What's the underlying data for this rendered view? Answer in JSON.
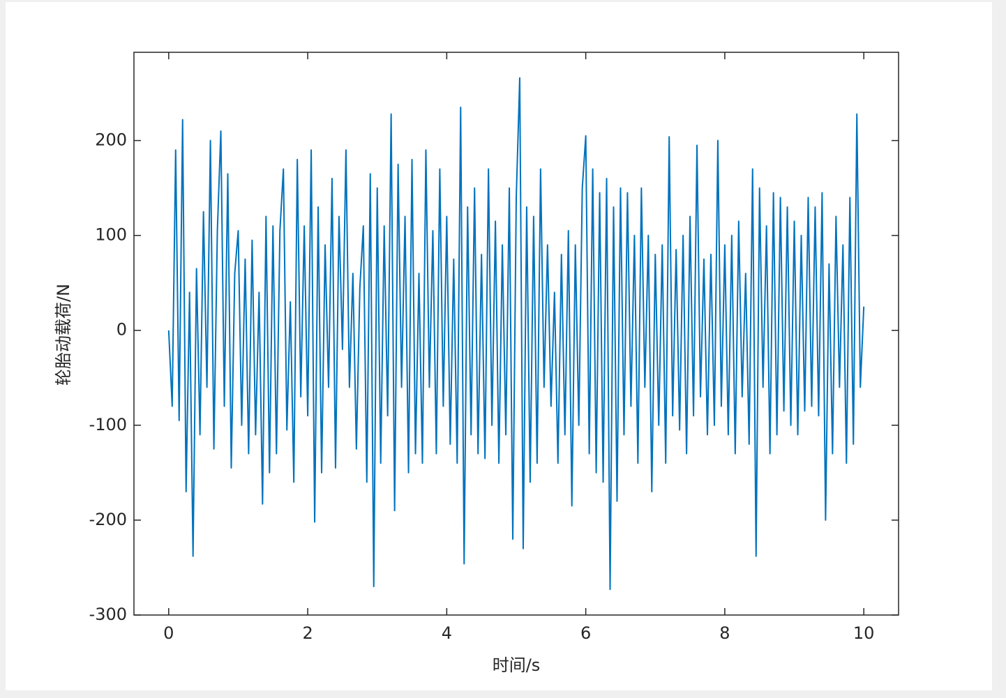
{
  "chart_data": {
    "type": "line",
    "x_label": "时间/s",
    "y_label": "轮胎动载荷/N",
    "xlim": [
      -0.5,
      10.5
    ],
    "ylim": [
      -300,
      293
    ],
    "xticks": [
      0,
      2,
      4,
      6,
      8,
      10
    ],
    "yticks": [
      -300,
      -200,
      -100,
      0,
      100,
      200
    ],
    "series": [
      {
        "color": "#0072bd",
        "x": [
          0,
          0.05,
          0.1,
          0.15,
          0.2,
          0.25,
          0.3,
          0.35,
          0.4,
          0.45,
          0.5,
          0.55,
          0.6,
          0.65,
          0.7,
          0.75,
          0.8,
          0.85,
          0.9,
          0.95,
          1,
          1.05,
          1.1,
          1.15,
          1.2,
          1.25,
          1.3,
          1.35,
          1.4,
          1.45,
          1.5,
          1.55,
          1.6,
          1.65,
          1.7,
          1.75,
          1.8,
          1.85,
          1.9,
          1.95,
          2,
          2.05,
          2.1,
          2.15,
          2.2,
          2.25,
          2.3,
          2.35,
          2.4,
          2.45,
          2.5,
          2.55,
          2.6,
          2.65,
          2.7,
          2.75,
          2.8,
          2.85,
          2.9,
          2.95,
          3,
          3.05,
          3.1,
          3.15,
          3.2,
          3.25,
          3.3,
          3.35,
          3.4,
          3.45,
          3.5,
          3.55,
          3.6,
          3.65,
          3.7,
          3.75,
          3.8,
          3.85,
          3.9,
          3.95,
          4,
          4.05,
          4.1,
          4.15,
          4.2,
          4.25,
          4.3,
          4.35,
          4.4,
          4.45,
          4.5,
          4.55,
          4.6,
          4.65,
          4.7,
          4.75,
          4.8,
          4.85,
          4.9,
          4.95,
          5,
          5.05,
          5.1,
          5.15,
          5.2,
          5.25,
          5.3,
          5.35,
          5.4,
          5.45,
          5.5,
          5.55,
          5.6,
          5.65,
          5.7,
          5.75,
          5.8,
          5.85,
          5.9,
          5.95,
          6,
          6.05,
          6.1,
          6.15,
          6.2,
          6.25,
          6.3,
          6.35,
          6.4,
          6.45,
          6.5,
          6.55,
          6.6,
          6.65,
          6.7,
          6.75,
          6.8,
          6.85,
          6.9,
          6.95,
          7,
          7.05,
          7.1,
          7.15,
          7.2,
          7.25,
          7.3,
          7.35,
          7.4,
          7.45,
          7.5,
          7.55,
          7.6,
          7.65,
          7.7,
          7.75,
          7.8,
          7.85,
          7.9,
          7.95,
          8,
          8.05,
          8.1,
          8.15,
          8.2,
          8.25,
          8.3,
          8.35,
          8.4,
          8.45,
          8.5,
          8.55,
          8.6,
          8.65,
          8.7,
          8.75,
          8.8,
          8.85,
          8.9,
          8.95,
          9,
          9.05,
          9.1,
          9.15,
          9.2,
          9.25,
          9.3,
          9.35,
          9.4,
          9.45,
          9.5,
          9.55,
          9.6,
          9.65,
          9.7,
          9.75,
          9.8,
          9.85,
          9.9,
          9.95,
          10
        ],
        "values": [
          0,
          -80,
          190,
          -95,
          222,
          -170,
          40,
          -238,
          65,
          -110,
          125,
          -60,
          200,
          -125,
          105,
          210,
          -80,
          165,
          -145,
          60,
          105,
          -100,
          75,
          -130,
          95,
          -110,
          40,
          -183,
          120,
          -150,
          110,
          -130,
          105,
          170,
          -105,
          30,
          -160,
          180,
          -70,
          110,
          -90,
          190,
          -202,
          130,
          -150,
          90,
          -60,
          160,
          -145,
          120,
          -20,
          190,
          -60,
          60,
          -125,
          45,
          110,
          -160,
          165,
          -270,
          150,
          -140,
          110,
          -90,
          228,
          -190,
          175,
          -60,
          120,
          -150,
          180,
          -130,
          60,
          -140,
          190,
          -60,
          105,
          -130,
          170,
          -80,
          120,
          -120,
          75,
          -140,
          235,
          -246,
          130,
          -110,
          150,
          -130,
          80,
          -135,
          170,
          -100,
          115,
          -140,
          90,
          -110,
          150,
          -220,
          140,
          266,
          -230,
          130,
          -160,
          120,
          -140,
          170,
          -60,
          90,
          -80,
          40,
          -140,
          80,
          -110,
          105,
          -185,
          90,
          -100,
          150,
          205,
          -130,
          170,
          -150,
          145,
          -160,
          160,
          -273,
          130,
          -180,
          150,
          -110,
          145,
          -80,
          100,
          -140,
          150,
          -60,
          100,
          -170,
          80,
          -100,
          90,
          -140,
          204,
          -90,
          85,
          -105,
          100,
          -130,
          120,
          -90,
          195,
          -70,
          75,
          -110,
          80,
          -100,
          200,
          -80,
          90,
          -110,
          100,
          -130,
          115,
          -70,
          60,
          -120,
          170,
          -238,
          150,
          -60,
          110,
          -130,
          145,
          -110,
          140,
          -85,
          130,
          -100,
          115,
          -110,
          100,
          -85,
          140,
          -80,
          130,
          -90,
          145,
          -200,
          70,
          -130,
          120,
          -60,
          90,
          -140,
          140,
          -120,
          228,
          -60,
          25
        ]
      }
    ]
  }
}
